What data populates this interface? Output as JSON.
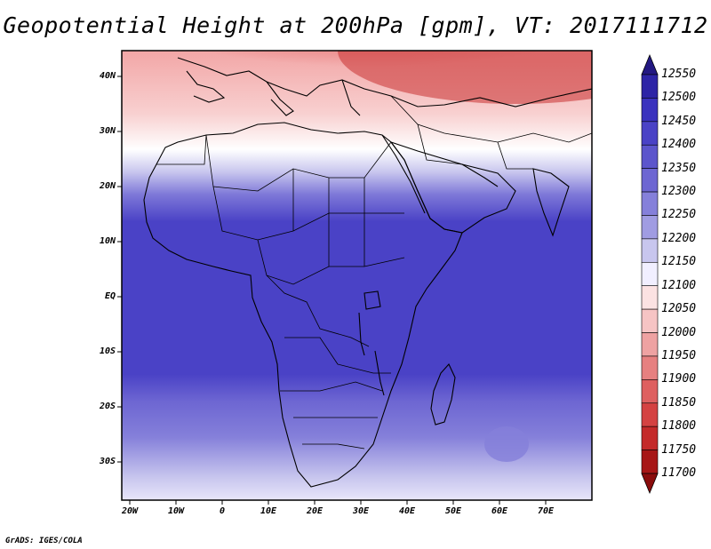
{
  "title": "Geopotential Height at 200hPa [gpm], VT: 2017111712",
  "credit": "GrADS: IGES/COLA",
  "map": {
    "lat_labels": [
      "40N",
      "30N",
      "20N",
      "10N",
      "EQ",
      "10S",
      "20S",
      "30S"
    ],
    "lon_labels": [
      "20W",
      "10W",
      "0",
      "10E",
      "20E",
      "30E",
      "40E",
      "50E",
      "60E",
      "70E"
    ]
  },
  "colorbar": {
    "labels": [
      "12550",
      "12500",
      "12450",
      "12400",
      "12350",
      "12300",
      "12250",
      "12200",
      "12150",
      "12100",
      "12050",
      "12000",
      "11950",
      "11900",
      "11850",
      "11800",
      "11750",
      "11700"
    ],
    "colors": [
      "#231882",
      "#2d24a6",
      "#3a32be",
      "#4a42c6",
      "#5c55cc",
      "#6d66d2",
      "#8580da",
      "#a09ce2",
      "#c8c6ee",
      "#f1efff",
      "#fbe2e2",
      "#f6c4c4",
      "#eea2a2",
      "#e68080",
      "#de6060",
      "#d44242",
      "#c42a2a",
      "#a71616",
      "#8a0c0c"
    ]
  }
}
